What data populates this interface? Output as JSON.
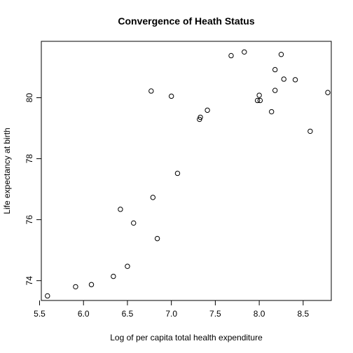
{
  "chart_data": {
    "type": "scatter",
    "title": "Convergence of Heath Status",
    "xlabel": "Log of per capita total health expenditure",
    "ylabel": "Life expectancy at birth",
    "xlim": [
      5.52,
      8.82
    ],
    "ylim": [
      73.35,
      81.85
    ],
    "xticks": [
      5.5,
      6.0,
      6.5,
      7.0,
      7.5,
      8.0,
      8.5
    ],
    "xtick_labels": [
      "5.5",
      "6.0",
      "6.5",
      "7.0",
      "7.5",
      "8.0",
      "8.5"
    ],
    "yticks": [
      74,
      76,
      78,
      80
    ],
    "ytick_labels": [
      "74",
      "76",
      "78",
      "80"
    ],
    "grid": false,
    "marker": "open-circle",
    "points": [
      {
        "x": 5.59,
        "y": 73.5
      },
      {
        "x": 5.91,
        "y": 73.8
      },
      {
        "x": 6.09,
        "y": 73.87
      },
      {
        "x": 6.34,
        "y": 74.14
      },
      {
        "x": 6.42,
        "y": 76.34
      },
      {
        "x": 6.5,
        "y": 74.47
      },
      {
        "x": 6.57,
        "y": 75.89
      },
      {
        "x": 6.77,
        "y": 80.22
      },
      {
        "x": 6.79,
        "y": 76.73
      },
      {
        "x": 6.84,
        "y": 75.38
      },
      {
        "x": 7.0,
        "y": 80.05
      },
      {
        "x": 7.07,
        "y": 77.52
      },
      {
        "x": 7.32,
        "y": 79.29
      },
      {
        "x": 7.33,
        "y": 79.36
      },
      {
        "x": 7.41,
        "y": 79.59
      },
      {
        "x": 7.68,
        "y": 81.38
      },
      {
        "x": 7.83,
        "y": 81.5
      },
      {
        "x": 7.98,
        "y": 79.91
      },
      {
        "x": 8.0,
        "y": 80.08
      },
      {
        "x": 8.01,
        "y": 79.91
      },
      {
        "x": 8.14,
        "y": 79.54
      },
      {
        "x": 8.18,
        "y": 80.92
      },
      {
        "x": 8.18,
        "y": 80.24
      },
      {
        "x": 8.25,
        "y": 81.42
      },
      {
        "x": 8.28,
        "y": 80.61
      },
      {
        "x": 8.41,
        "y": 80.59
      },
      {
        "x": 8.58,
        "y": 78.9
      },
      {
        "x": 8.78,
        "y": 80.17
      }
    ]
  }
}
